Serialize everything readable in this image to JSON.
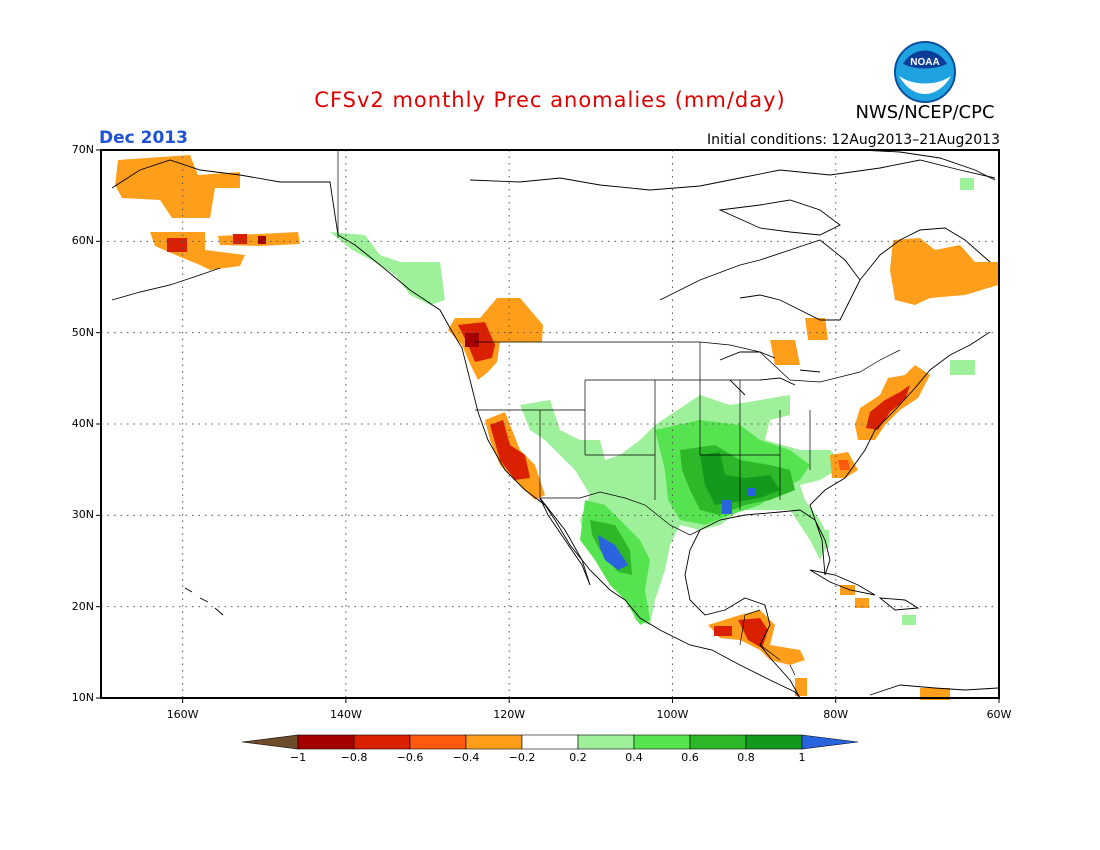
{
  "header": {
    "title": "CFSv2 monthly Prec anomalies (mm/day)",
    "month": "Dec 2013",
    "initial_conditions": "Initial conditions: 12Aug2013–21Aug2013",
    "agency": "NWS/NCEP/CPC",
    "logo_text": "NOAA",
    "logo_icon": "noaa-logo-icon"
  },
  "axes": {
    "lat_ticks": [
      "70N",
      "60N",
      "50N",
      "40N",
      "30N",
      "20N",
      "10N"
    ],
    "lon_ticks": [
      "160W",
      "140W",
      "120W",
      "100W",
      "80W",
      "60W"
    ],
    "lat_range": [
      10,
      70
    ],
    "lon_range": [
      -170,
      -60
    ],
    "grid": "dotted"
  },
  "colorbar": {
    "labels": [
      "−1",
      "−0.8",
      "−0.6",
      "−0.4",
      "−0.2",
      "0.2",
      "0.4",
      "0.6",
      "0.8",
      "1"
    ],
    "bins": [
      {
        "range": "< -1",
        "color": "#6e4b2a"
      },
      {
        "range": "-1 to -0.8",
        "color": "#a50000"
      },
      {
        "range": "-0.8 to -0.6",
        "color": "#d92000"
      },
      {
        "range": "-0.6 to -0.4",
        "color": "#ff5a10"
      },
      {
        "range": "-0.4 to -0.2",
        "color": "#ff9e1a"
      },
      {
        "range": "-0.2 to 0.2",
        "color": "#ffffff"
      },
      {
        "range": "0.2 to 0.4",
        "color": "#9ef09a"
      },
      {
        "range": "0.4 to 0.6",
        "color": "#56e350"
      },
      {
        "range": "0.6 to 0.8",
        "color": "#2db82a"
      },
      {
        "range": "0.8 to 1",
        "color": "#139a1c"
      },
      {
        "range": "> 1",
        "color": "#2a63de"
      }
    ]
  },
  "colors": {
    "dry_light": "#ff9e1a",
    "dry_mid": "#ff5a10",
    "dry_strong": "#d92000",
    "dry_extreme": "#a50000",
    "wet_light": "#9ef09a",
    "wet_mid": "#56e350",
    "wet_strong": "#2db82a",
    "wet_extreme": "#139a1c",
    "wet_max": "#2a63de"
  }
}
